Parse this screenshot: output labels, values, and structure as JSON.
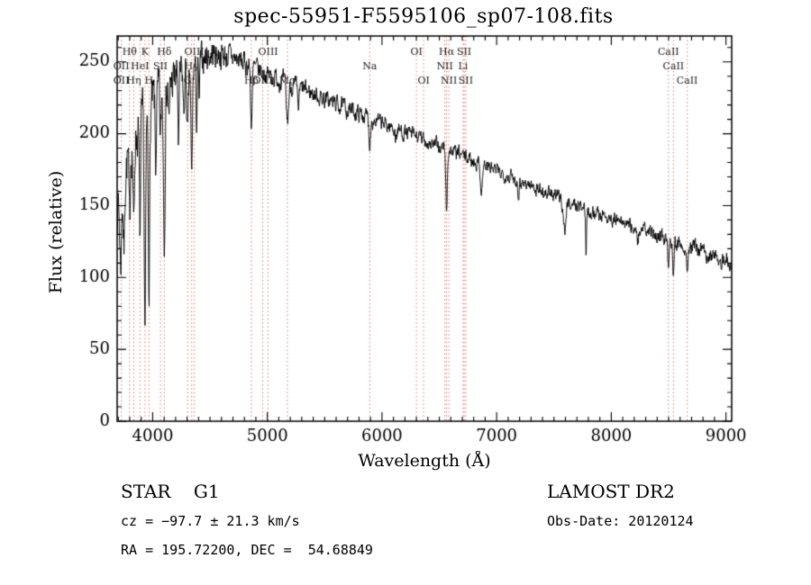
{
  "title": "spec-55951-F5595106_sp07-108.fits",
  "footer": {
    "class_label": "STAR    G1",
    "survey": "LAMOST DR2",
    "cz": "cz = −97.7 ± 21.3 km/s",
    "obs_date": "Obs-Date: 20120124",
    "radec": "RA = 195.72200, DEC =  54.68849"
  },
  "chart_data": {
    "type": "line",
    "title": "spec-55951-F5595106_sp07-108.fits",
    "xlabel": "Wavelength (Å)",
    "ylabel": "Flux (relative)",
    "xlim": [
      3690,
      9050
    ],
    "ylim": [
      0,
      268
    ],
    "xticks": [
      4000,
      5000,
      6000,
      7000,
      8000,
      9000
    ],
    "x_minor_step": 100,
    "yticks": [
      0,
      50,
      100,
      150,
      200,
      250
    ],
    "y_minor_step": 10,
    "grid": false,
    "line_color": "#000000",
    "marker_line_color": "#dd7777",
    "label_color": "#1a1a1a",
    "series_name": "spectrum",
    "spectral_lines": [
      {
        "label": "Hθ",
        "wavelength": 3798,
        "row": 0
      },
      {
        "label": "K",
        "wavelength": 3933,
        "row": 0
      },
      {
        "label": "Hδ",
        "wavelength": 4101,
        "row": 0
      },
      {
        "label": "OIII",
        "wavelength": 4363,
        "row": 0
      },
      {
        "label": "OIII",
        "wavelength": 5007,
        "row": 0
      },
      {
        "label": "OI",
        "wavelength": 6300,
        "row": 0
      },
      {
        "label": "Hα",
        "wavelength": 6563,
        "row": 0
      },
      {
        "label": "SII",
        "wavelength": 6716,
        "row": 0
      },
      {
        "label": "CaII",
        "wavelength": 8498,
        "row": 0
      },
      {
        "label": "OII",
        "wavelength": 3727,
        "row": 1
      },
      {
        "label": "HeI",
        "wavelength": 3889,
        "row": 1
      },
      {
        "label": "SII",
        "wavelength": 4068,
        "row": 1
      },
      {
        "label": "Hγ",
        "wavelength": 4340,
        "row": 1
      },
      {
        "label": "Na",
        "wavelength": 5893,
        "row": 1
      },
      {
        "label": "NII",
        "wavelength": 6548,
        "row": 1
      },
      {
        "label": "Li",
        "wavelength": 6707,
        "row": 1
      },
      {
        "label": "CaII",
        "wavelength": 8542,
        "row": 1
      },
      {
        "label": "OII",
        "wavelength": 3727,
        "row": 2
      },
      {
        "label": "Hη",
        "wavelength": 3835,
        "row": 2
      },
      {
        "label": "H",
        "wavelength": 3968,
        "row": 2
      },
      {
        "label": "G",
        "wavelength": 4305,
        "row": 2
      },
      {
        "label": "Hβ",
        "wavelength": 4861,
        "row": 2
      },
      {
        "label": "OIII",
        "wavelength": 4959,
        "row": 2
      },
      {
        "label": "Mg",
        "wavelength": 5175,
        "row": 2
      },
      {
        "label": "OI",
        "wavelength": 6363,
        "row": 2
      },
      {
        "label": "NII",
        "wavelength": 6583,
        "row": 2
      },
      {
        "label": "SII",
        "wavelength": 6731,
        "row": 2
      },
      {
        "label": "CaII",
        "wavelength": 8662,
        "row": 2
      }
    ],
    "continuum": [
      [
        3690,
        152
      ],
      [
        3720,
        150
      ],
      [
        3760,
        175
      ],
      [
        3800,
        190
      ],
      [
        3850,
        200
      ],
      [
        3900,
        205
      ],
      [
        3950,
        210
      ],
      [
        4000,
        220
      ],
      [
        4050,
        225
      ],
      [
        4100,
        230
      ],
      [
        4150,
        235
      ],
      [
        4200,
        238
      ],
      [
        4250,
        240
      ],
      [
        4300,
        242
      ],
      [
        4350,
        246
      ],
      [
        4400,
        250
      ],
      [
        4450,
        253
      ],
      [
        4500,
        255
      ],
      [
        4550,
        256
      ],
      [
        4600,
        255
      ],
      [
        4650,
        254
      ],
      [
        4700,
        253
      ],
      [
        4750,
        251
      ],
      [
        4800,
        249
      ],
      [
        4850,
        247
      ],
      [
        4900,
        245
      ],
      [
        4950,
        243
      ],
      [
        5000,
        241
      ],
      [
        5100,
        238
      ],
      [
        5200,
        234
      ],
      [
        5300,
        231
      ],
      [
        5400,
        228
      ],
      [
        5500,
        224
      ],
      [
        5600,
        221
      ],
      [
        5700,
        217
      ],
      [
        5800,
        214
      ],
      [
        5900,
        211
      ],
      [
        6000,
        207
      ],
      [
        6100,
        204
      ],
      [
        6200,
        201
      ],
      [
        6300,
        198
      ],
      [
        6400,
        194
      ],
      [
        6500,
        191
      ],
      [
        6600,
        188
      ],
      [
        6700,
        185
      ],
      [
        6800,
        181
      ],
      [
        6900,
        178
      ],
      [
        7000,
        174
      ],
      [
        7100,
        171
      ],
      [
        7200,
        167
      ],
      [
        7300,
        164
      ],
      [
        7400,
        160
      ],
      [
        7500,
        157
      ],
      [
        7600,
        153
      ],
      [
        7700,
        150
      ],
      [
        7800,
        147
      ],
      [
        7900,
        144
      ],
      [
        8000,
        141
      ],
      [
        8100,
        138
      ],
      [
        8200,
        135
      ],
      [
        8300,
        132
      ],
      [
        8400,
        130
      ],
      [
        8500,
        127
      ],
      [
        8600,
        124
      ],
      [
        8700,
        121
      ],
      [
        8800,
        118
      ],
      [
        8900,
        114
      ],
      [
        9000,
        112
      ],
      [
        9050,
        110
      ]
    ],
    "absorption_features": [
      {
        "center": 3720,
        "depth": 40,
        "width": 10
      },
      {
        "center": 3750,
        "depth": 50,
        "width": 8
      },
      {
        "center": 3798,
        "depth": 55,
        "width": 8
      },
      {
        "center": 3835,
        "depth": 65,
        "width": 8
      },
      {
        "center": 3889,
        "depth": 75,
        "width": 8
      },
      {
        "center": 3933,
        "depth": 145,
        "width": 9
      },
      {
        "center": 3968,
        "depth": 110,
        "width": 9
      },
      {
        "center": 4026,
        "depth": 45,
        "width": 7
      },
      {
        "center": 4068,
        "depth": 35,
        "width": 7
      },
      {
        "center": 4101,
        "depth": 95,
        "width": 10
      },
      {
        "center": 4144,
        "depth": 30,
        "width": 7
      },
      {
        "center": 4226,
        "depth": 45,
        "width": 7
      },
      {
        "center": 4271,
        "depth": 30,
        "width": 7
      },
      {
        "center": 4305,
        "depth": 45,
        "width": 10
      },
      {
        "center": 4340,
        "depth": 78,
        "width": 9
      },
      {
        "center": 4383,
        "depth": 40,
        "width": 7
      },
      {
        "center": 4405,
        "depth": 28,
        "width": 7
      },
      {
        "center": 4861,
        "depth": 38,
        "width": 10
      },
      {
        "center": 5175,
        "depth": 26,
        "width": 14
      },
      {
        "center": 5270,
        "depth": 14,
        "width": 10
      },
      {
        "center": 5893,
        "depth": 18,
        "width": 10
      },
      {
        "center": 6122,
        "depth": 8,
        "width": 8
      },
      {
        "center": 6563,
        "depth": 44,
        "width": 9
      },
      {
        "center": 6867,
        "depth": 18,
        "width": 12
      },
      {
        "center": 7190,
        "depth": 8,
        "width": 10
      },
      {
        "center": 7594,
        "depth": 20,
        "width": 16
      },
      {
        "center": 7780,
        "depth": 30,
        "width": 6
      },
      {
        "center": 8230,
        "depth": 10,
        "width": 10
      },
      {
        "center": 8498,
        "depth": 18,
        "width": 8
      },
      {
        "center": 8542,
        "depth": 22,
        "width": 8
      },
      {
        "center": 8662,
        "depth": 22,
        "width": 8
      }
    ],
    "noise_profile": [
      [
        3690,
        16
      ],
      [
        4000,
        15
      ],
      [
        4200,
        13
      ],
      [
        4400,
        9
      ],
      [
        4700,
        7
      ],
      [
        5000,
        5.5
      ],
      [
        5500,
        5
      ],
      [
        6000,
        4.5
      ],
      [
        7000,
        4
      ],
      [
        8000,
        4
      ],
      [
        9050,
        4.5
      ]
    ],
    "noise_seed": 7,
    "sample_step": 3
  }
}
